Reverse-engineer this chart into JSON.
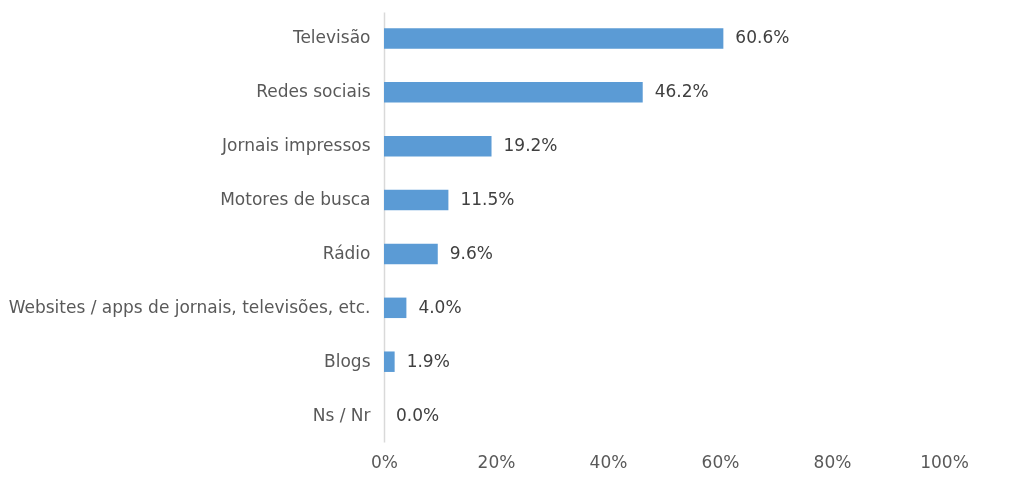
{
  "chart_data": {
    "type": "bar",
    "orientation": "horizontal",
    "categories": [
      "Televisão",
      "Redes sociais",
      "Jornais impressos",
      "Motores de busca",
      "Rádio",
      "Websites / apps de jornais, televisões, etc.",
      "Blogs",
      "Ns / Nr"
    ],
    "values": [
      60.6,
      46.2,
      19.2,
      11.5,
      9.6,
      4.0,
      1.9,
      0.0
    ],
    "value_labels": [
      "60.6%",
      "46.2%",
      "19.2%",
      "11.5%",
      "9.6%",
      "4.0%",
      "1.9%",
      "0.0%"
    ],
    "color": "#5b9bd5",
    "xlim": [
      0,
      100
    ],
    "xticks": [
      {
        "value": 0,
        "label": "0%"
      },
      {
        "value": 20,
        "label": "20%"
      },
      {
        "value": 40,
        "label": "40%"
      },
      {
        "value": 60,
        "label": "60%"
      },
      {
        "value": 80,
        "label": "80%"
      },
      {
        "value": 100,
        "label": "100%"
      }
    ],
    "grid": false
  }
}
